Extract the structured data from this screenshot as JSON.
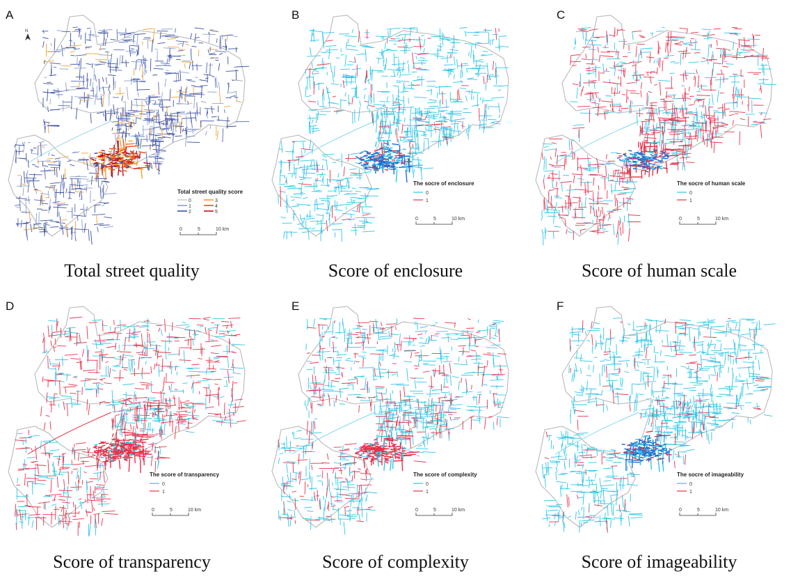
{
  "panels": [
    {
      "id": "A",
      "caption": "Total street quality",
      "legend_title": "Total street quality score",
      "kind": "total",
      "legend_items": [
        {
          "label": "0",
          "color": "#cfcfcf"
        },
        {
          "label": "1",
          "color": "#8da0cb"
        },
        {
          "label": "2",
          "color": "#3b4fa0"
        },
        {
          "label": "3",
          "color": "#f0a030"
        },
        {
          "label": "4",
          "color": "#e8501a"
        },
        {
          "label": "5",
          "color": "#c4101a"
        }
      ],
      "north": "N"
    },
    {
      "id": "B",
      "caption": "Score of enclosure",
      "legend_title": "The socre of enclosure",
      "kind": "binary",
      "legend_items": [
        {
          "label": "0",
          "color": "#2ec5e8"
        },
        {
          "label": "1",
          "color": "#e8304a"
        }
      ]
    },
    {
      "id": "C",
      "caption": "Score of human scale",
      "legend_title": "The socre of human scale",
      "kind": "binary",
      "legend_items": [
        {
          "label": "0",
          "color": "#2ec5e8"
        },
        {
          "label": "1",
          "color": "#e8304a"
        }
      ]
    },
    {
      "id": "D",
      "caption": "Score of transparency",
      "legend_title": "The score of transparency",
      "kind": "binary",
      "legend_items": [
        {
          "label": "0",
          "color": "#2ec5e8"
        },
        {
          "label": "1",
          "color": "#e8304a"
        }
      ]
    },
    {
      "id": "E",
      "caption": "Score of complexity",
      "legend_title": "The score of complexity",
      "kind": "binary",
      "legend_items": [
        {
          "label": "0",
          "color": "#2ec5e8"
        },
        {
          "label": "1",
          "color": "#e8304a"
        }
      ]
    },
    {
      "id": "F",
      "caption": "Score of imageability",
      "legend_title": "The socre of imageability",
      "kind": "binary",
      "legend_items": [
        {
          "label": "0",
          "color": "#2ec5e8"
        },
        {
          "label": "1",
          "color": "#e8304a"
        }
      ]
    }
  ],
  "scale_bar": {
    "labels": [
      "0",
      "5",
      "10 km"
    ]
  },
  "red_share": {
    "A": 0.3,
    "B": 0.12,
    "C": 0.6,
    "D": 0.62,
    "E": 0.35,
    "F": 0.15
  }
}
